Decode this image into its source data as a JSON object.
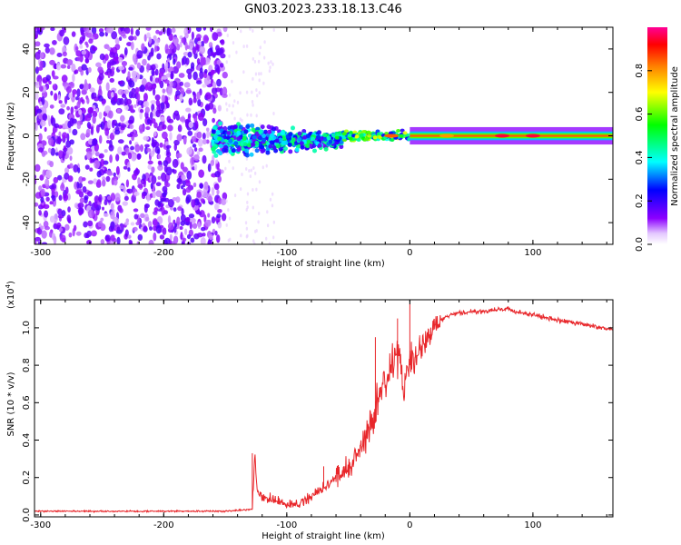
{
  "title": "GN03.2023.233.18.13.C46",
  "chart_data": [
    {
      "type": "heatmap",
      "name": "spectrogram",
      "xlabel": "Height of straight line (km)",
      "ylabel": "Frequency (Hz)",
      "xlim": [
        -305,
        165
      ],
      "ylim": [
        -50,
        50
      ],
      "xticks": [
        -300,
        -200,
        -100,
        0,
        100
      ],
      "xtick_labels": [
        "-300",
        "-200",
        "-100",
        "0",
        "100"
      ],
      "yticks": [
        -40,
        -20,
        0,
        20,
        40
      ],
      "ytick_labels": [
        "-40",
        "-20",
        "0",
        "20",
        "40"
      ],
      "colorbar": {
        "label": "Normalized spectral amplitude",
        "range": [
          0,
          1
        ],
        "ticks": [
          0.0,
          0.2,
          0.4,
          0.6,
          0.8
        ],
        "tick_labels": [
          "0.0",
          "0.2",
          "0.4",
          "0.6",
          "0.8"
        ]
      },
      "regions": [
        {
          "x": [
            -305,
            -160
          ],
          "freq_center": 0,
          "freq_halfwidth": 50,
          "amplitude": 0.15,
          "description": "broadband noise"
        },
        {
          "x": [
            -160,
            -60
          ],
          "freq_center": -2,
          "freq_halfwidth": 10,
          "amplitude": 0.3
        },
        {
          "x": [
            -60,
            0
          ],
          "freq_center": 0,
          "freq_halfwidth": 4,
          "amplitude": 0.5
        },
        {
          "x": [
            0,
            165
          ],
          "freq_center": 0,
          "freq_halfwidth": 2,
          "amplitude": 0.85
        }
      ]
    },
    {
      "type": "line",
      "name": "snr",
      "xlabel": "Height of straight line (km)",
      "ylabel": "SNR (10 * v/v)",
      "ylabel_scale": "(x10",
      "ylabel_scale_exp": "4",
      "ylabel_scale_close": ")",
      "xlim": [
        -305,
        165
      ],
      "ylim": [
        -0.01,
        1.15
      ],
      "xticks": [
        -300,
        -200,
        -100,
        0,
        100
      ],
      "xtick_labels": [
        "-300",
        "-200",
        "-100",
        "0",
        "100"
      ],
      "yticks": [
        0.0,
        0.2,
        0.4,
        0.6,
        0.8,
        1.0
      ],
      "ytick_labels": [
        "0.0",
        "0.2",
        "0.4",
        "0.6",
        "0.8",
        "1.0"
      ],
      "series_color": "#e8262a",
      "series": [
        {
          "name": "SNR",
          "x": [
            -305,
            -250,
            -200,
            -150,
            -128,
            -126,
            -124,
            -120,
            -110,
            -100,
            -90,
            -80,
            -70,
            -60,
            -50,
            -40,
            -30,
            -25,
            -20,
            -15,
            -10,
            -5,
            0,
            5,
            10,
            15,
            20,
            25,
            30,
            40,
            60,
            80,
            90,
            100,
            120,
            140,
            165
          ],
          "y": [
            0.02,
            0.02,
            0.02,
            0.02,
            0.03,
            0.33,
            0.12,
            0.1,
            0.08,
            0.05,
            0.06,
            0.1,
            0.15,
            0.2,
            0.25,
            0.35,
            0.5,
            0.65,
            0.7,
            0.8,
            0.85,
            0.7,
            0.8,
            0.85,
            0.9,
            0.95,
            1.0,
            1.04,
            1.06,
            1.08,
            1.09,
            1.1,
            1.08,
            1.07,
            1.04,
            1.02,
            0.99
          ]
        }
      ],
      "spikes": [
        {
          "x": -128,
          "y": 0.33
        },
        {
          "x": -70,
          "y": 0.26
        },
        {
          "x": -28,
          "y": 0.95
        },
        {
          "x": -10,
          "y": 1.05
        },
        {
          "x": 0,
          "y": 1.13
        },
        {
          "x": 8,
          "y": 0.96
        }
      ]
    }
  ],
  "colors": {
    "axis": "#000000",
    "line": "#e8262a"
  }
}
